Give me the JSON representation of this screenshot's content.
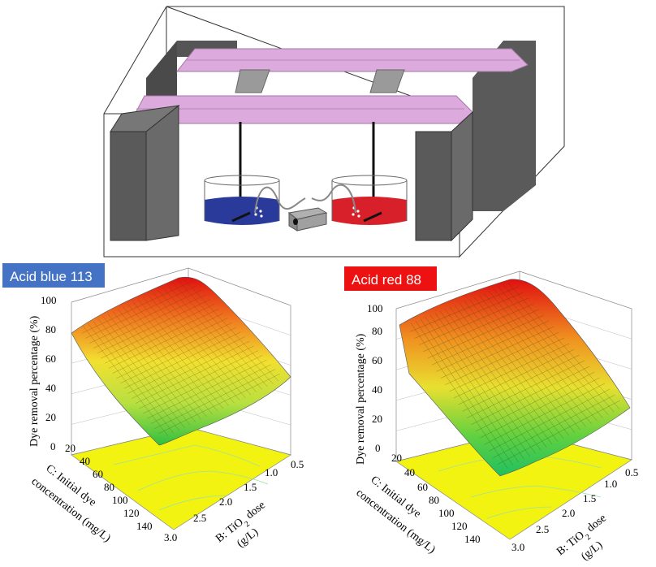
{
  "colors": {
    "rail": "#dcaadc",
    "block": "#636363",
    "blue_dye": "#2a3a9a",
    "red_dye": "#d8202a",
    "badge_blue": "#4472c4",
    "badge_red": "#ee1111",
    "floor": "#f3f312"
  },
  "icons": [
    "magnetic-stirrer-icon",
    "air-pump-icon"
  ],
  "plots": [
    {
      "badge": "Acid blue 113",
      "zlabel": "Dye removal percentage (%)",
      "zticks": [
        "0",
        "20",
        "40",
        "60",
        "80",
        "100"
      ],
      "c_label_1": "C: Initial dye",
      "c_label_2": "concentration (mg/L)",
      "c_ticks": [
        "20",
        "40",
        "60",
        "80",
        "100",
        "120",
        "140"
      ],
      "b_label_1": "B: TiO",
      "b_label_sub": "2",
      "b_label_2": " dose",
      "b_label_3": "(g/L)",
      "b_ticks": [
        "3.0",
        "2.5",
        "2.0",
        "1.5",
        "1.0",
        "0.5"
      ]
    },
    {
      "badge": "Acid red 88",
      "zlabel": "Dye removal percentage (%)",
      "zticks": [
        "0",
        "20",
        "40",
        "60",
        "80",
        "100"
      ],
      "c_label_1": "C: Initial dye",
      "c_label_2": "concentration (mg/L)",
      "c_ticks": [
        "20",
        "40",
        "60",
        "80",
        "100",
        "120",
        "140"
      ],
      "b_label_1": "B: TiO",
      "b_label_sub": "2",
      "b_label_2": " dose",
      "b_label_3": "(g/L)",
      "b_ticks": [
        "3.0",
        "2.5",
        "2.0",
        "1.5",
        "1.0",
        "0.5"
      ]
    }
  ]
}
